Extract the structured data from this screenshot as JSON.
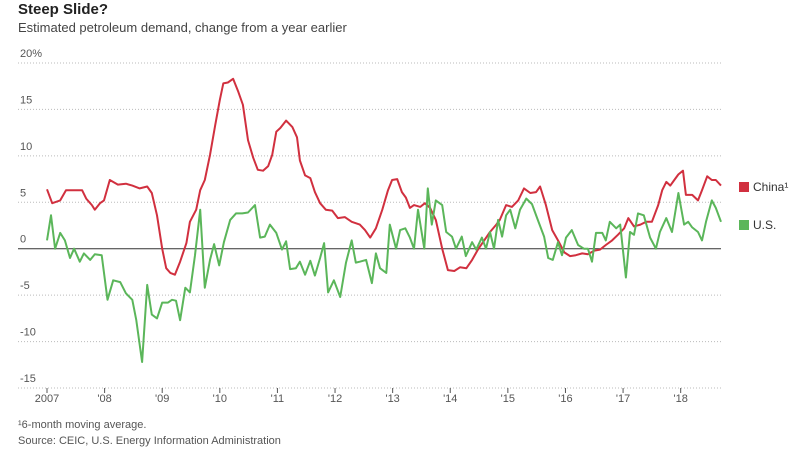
{
  "chart_data": {
    "type": "line",
    "title": "Steep Slide?",
    "subtitle": "Estimated petroleum demand, change from a year earlier",
    "footnote": "¹6-month moving average.",
    "source": "Source: CEIC, U.S. Energy Information Administration",
    "xlim": [
      2007,
      2018.7
    ],
    "xticks": [
      2007,
      {
        "value": 2008,
        "label": "'08"
      },
      {
        "value": 2009,
        "label": "'09"
      },
      {
        "value": 2010,
        "label": "'10"
      },
      {
        "value": 2011,
        "label": "'11"
      },
      {
        "value": 2012,
        "label": "'12"
      },
      {
        "value": 2013,
        "label": "'13"
      },
      {
        "value": 2014,
        "label": "'14"
      },
      {
        "value": 2015,
        "label": "'15"
      },
      {
        "value": 2016,
        "label": "'16"
      },
      {
        "value": 2017,
        "label": "'17"
      },
      {
        "value": 2018,
        "label": "'18"
      }
    ],
    "ylim": [
      -15,
      20
    ],
    "yticks": [
      {
        "value": 20,
        "label": "20%"
      },
      15,
      10,
      5,
      0,
      -5,
      -10,
      -15
    ],
    "grid": true,
    "legend": "right",
    "series": [
      {
        "name": "China¹",
        "color": "#d1303f",
        "x": [
          2007.0,
          2007.09,
          2007.23,
          2007.33,
          2007.5,
          2007.61,
          2007.68,
          2007.78,
          2007.83,
          2007.92,
          2007.99,
          2008.09,
          2008.23,
          2008.37,
          2008.48,
          2008.61,
          2008.74,
          2008.82,
          2008.91,
          2009.0,
          2009.07,
          2009.14,
          2009.22,
          2009.31,
          2009.42,
          2009.48,
          2009.59,
          2009.66,
          2009.74,
          2009.83,
          2009.92,
          2010.0,
          2010.06,
          2010.14,
          2010.23,
          2010.32,
          2010.4,
          2010.49,
          2010.58,
          2010.66,
          2010.75,
          2010.84,
          2010.91,
          2010.98,
          2011.05,
          2011.15,
          2011.26,
          2011.34,
          2011.39,
          2011.48,
          2011.57,
          2011.65,
          2011.74,
          2011.84,
          2011.95,
          2012.05,
          2012.17,
          2012.29,
          2012.43,
          2012.52,
          2012.61,
          2012.71,
          2012.82,
          2012.92,
          2012.99,
          2013.08,
          2013.16,
          2013.23,
          2013.3,
          2013.37,
          2013.48,
          2013.56,
          2013.65,
          2013.75,
          2013.86,
          2013.96,
          2014.07,
          2014.17,
          2014.28,
          2014.38,
          2014.48,
          2014.59,
          2014.69,
          2014.8,
          2014.86,
          2014.97,
          2015.07,
          2015.18,
          2015.28,
          2015.39,
          2015.49,
          2015.56,
          2015.66,
          2015.77,
          2015.87,
          2015.98,
          2016.08,
          2016.18,
          2016.29,
          2016.39,
          2016.5,
          2016.6,
          2016.7,
          2016.81,
          2016.91,
          2017.02,
          2017.09,
          2017.19,
          2017.3,
          2017.4,
          2017.5,
          2017.61,
          2017.68,
          2017.75,
          2017.82,
          2017.89,
          2017.96,
          2018.04,
          2018.09,
          2018.2,
          2018.3,
          2018.37,
          2018.46,
          2018.54,
          2018.61,
          2018.7
        ],
        "values": [
          6.4,
          4.9,
          5.2,
          6.3,
          6.3,
          6.3,
          5.4,
          4.7,
          4.2,
          4.9,
          5.2,
          7.4,
          6.9,
          7.0,
          6.8,
          6.5,
          6.7,
          6.0,
          3.6,
          0,
          -2.1,
          -2.6,
          -2.8,
          -1.4,
          0.6,
          2.9,
          4.2,
          6.3,
          7.4,
          10.1,
          13.3,
          16.0,
          17.8,
          17.9,
          18.3,
          16.9,
          15.5,
          11.7,
          9.8,
          8.5,
          8.4,
          8.9,
          10.1,
          12.6,
          13.0,
          13.8,
          13.1,
          12.0,
          9.5,
          7.9,
          7.6,
          6.1,
          4.9,
          4.2,
          4.1,
          3.3,
          3.4,
          2.9,
          2.6,
          2.0,
          1.2,
          2.2,
          4.2,
          6.3,
          7.4,
          7.5,
          6.1,
          5.5,
          4.4,
          4.7,
          4.5,
          4.9,
          4.4,
          3.1,
          0,
          -2.3,
          -2.4,
          -2.0,
          -2.1,
          -1.2,
          -0.1,
          0.9,
          1.8,
          2.6,
          3.1,
          4.7,
          4.5,
          5.2,
          6.5,
          6.0,
          6.1,
          6.7,
          4.7,
          2.0,
          0.9,
          -0.4,
          -0.8,
          -0.7,
          -0.5,
          -0.6,
          -0.2,
          -0.1,
          0.4,
          0.9,
          1.5,
          2.2,
          3.3,
          2.4,
          2.6,
          2.9,
          2.9,
          4.7,
          6.3,
          7.2,
          6.8,
          7.4,
          8.0,
          8.4,
          5.8,
          5.8,
          5.2,
          6.3,
          7.8,
          7.4,
          7.4,
          6.8
        ]
      },
      {
        "name": "U.S.",
        "color": "#5bb65a",
        "x": [
          2007.0,
          2007.07,
          2007.14,
          2007.23,
          2007.31,
          2007.4,
          2007.47,
          2007.57,
          2007.64,
          2007.75,
          2007.83,
          2007.95,
          2008.05,
          2008.15,
          2008.27,
          2008.37,
          2008.48,
          2008.55,
          2008.65,
          2008.74,
          2008.82,
          2008.91,
          2009.0,
          2009.1,
          2009.17,
          2009.24,
          2009.31,
          2009.4,
          2009.48,
          2009.57,
          2009.66,
          2009.74,
          2009.83,
          2009.9,
          2009.99,
          2010.07,
          2010.18,
          2010.28,
          2010.39,
          2010.49,
          2010.61,
          2010.7,
          2010.78,
          2010.87,
          2010.98,
          2011.08,
          2011.15,
          2011.22,
          2011.32,
          2011.39,
          2011.48,
          2011.57,
          2011.65,
          2011.74,
          2011.81,
          2011.88,
          2011.98,
          2012.09,
          2012.19,
          2012.29,
          2012.36,
          2012.43,
          2012.54,
          2012.64,
          2012.71,
          2012.78,
          2012.89,
          2012.95,
          2013.06,
          2013.13,
          2013.22,
          2013.3,
          2013.37,
          2013.44,
          2013.55,
          2013.61,
          2013.68,
          2013.75,
          2013.86,
          2013.93,
          2014.03,
          2014.1,
          2014.2,
          2014.27,
          2014.38,
          2014.45,
          2014.55,
          2014.62,
          2014.69,
          2014.76,
          2014.83,
          2014.9,
          2014.97,
          2015.04,
          2015.13,
          2015.21,
          2015.32,
          2015.42,
          2015.52,
          2015.63,
          2015.7,
          2015.78,
          2015.87,
          2015.94,
          2016.01,
          2016.11,
          2016.22,
          2016.32,
          2016.39,
          2016.46,
          2016.53,
          2016.64,
          2016.7,
          2016.77,
          2016.88,
          2016.95,
          2017.05,
          2017.12,
          2017.19,
          2017.26,
          2017.36,
          2017.47,
          2017.57,
          2017.64,
          2017.75,
          2017.85,
          2017.96,
          2018.06,
          2018.13,
          2018.2,
          2018.3,
          2018.37,
          2018.44,
          2018.54,
          2018.61,
          2018.7
        ],
        "values": [
          0.9,
          3.6,
          0,
          1.7,
          0.9,
          -1.0,
          0,
          -1.4,
          -0.5,
          -1.2,
          -0.6,
          -0.7,
          -5.5,
          -3.4,
          -3.6,
          -4.8,
          -5.5,
          -7.7,
          -12.2,
          -3.9,
          -7.1,
          -7.5,
          -5.8,
          -5.8,
          -5.5,
          -5.6,
          -7.7,
          -4.2,
          -4.7,
          -0.7,
          4.2,
          -4.2,
          -1.2,
          0.5,
          -1.8,
          0.7,
          3.1,
          3.8,
          3.8,
          3.9,
          4.7,
          1.2,
          1.3,
          2.6,
          1.7,
          -0.1,
          0.8,
          -2.2,
          -2.1,
          -1.4,
          -2.8,
          -1.3,
          -2.9,
          -1.0,
          0.6,
          -4.7,
          -3.4,
          -5.2,
          -1.5,
          0.9,
          -1.5,
          -1.4,
          -1.2,
          -3.7,
          -0.5,
          -2.1,
          -2.6,
          2.6,
          0,
          2.0,
          2.2,
          1.2,
          0,
          4.2,
          0,
          6.5,
          2.6,
          5.2,
          4.7,
          1.8,
          1.3,
          0,
          1.3,
          -0.8,
          0.7,
          -0.1,
          1.2,
          0,
          1.8,
          0,
          3.1,
          1.3,
          3.6,
          4.2,
          2.2,
          4.2,
          5.4,
          4.8,
          3.1,
          1.3,
          -1.0,
          -1.2,
          0.7,
          -0.7,
          1.2,
          2.0,
          0.4,
          0,
          0,
          -1.4,
          1.7,
          1.7,
          0.9,
          2.9,
          2.2,
          2.6,
          -3.1,
          1.8,
          1.5,
          3.8,
          3.6,
          1.2,
          0,
          1.8,
          3.3,
          1.8,
          6.0,
          2.6,
          2.9,
          2.3,
          1.8,
          0.9,
          2.9,
          5.2,
          4.4,
          2.9
        ]
      }
    ]
  }
}
